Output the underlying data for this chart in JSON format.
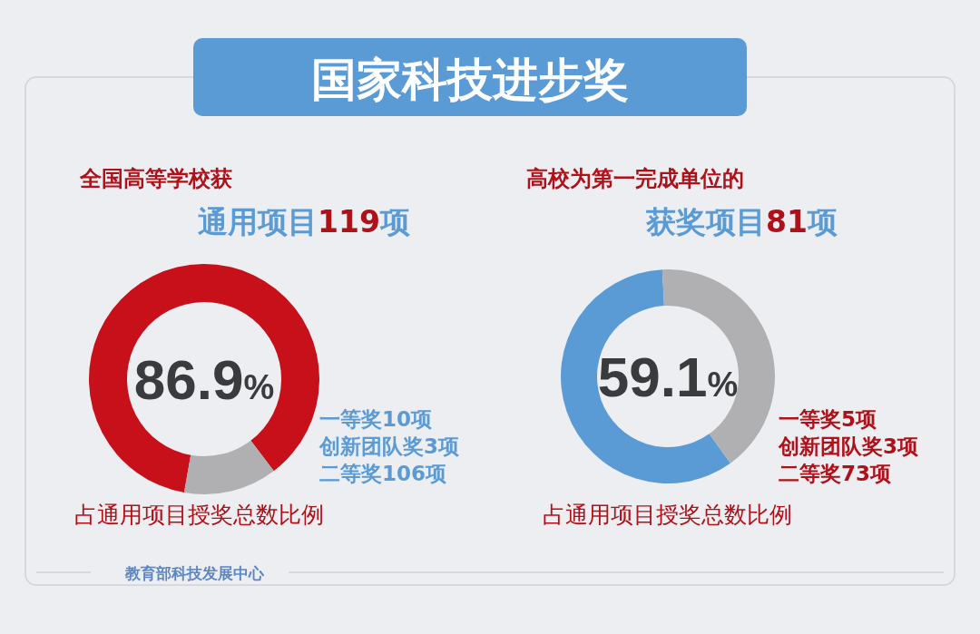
{
  "chart_data": [
    {
      "type": "donut",
      "title": "全国高等学校获",
      "subtitle": "通用项目119项",
      "categories": [
        null,
        null
      ],
      "values": [
        86.9,
        13.1
      ],
      "colors": [
        "#c8101a",
        "#b0b0b2"
      ],
      "value_labels": [
        "86.9%",
        null
      ],
      "annotations": [
        "国家科技进步奖",
        "一等奖10项",
        "创新团队奖3项",
        "二等奖106项",
        "占通用项目授奖总数比例",
        "教育部科技发展中心"
      ]
    },
    {
      "type": "donut",
      "title": "高校为第一完成单位的",
      "subtitle": "获奖项目81项",
      "categories": [
        null,
        null
      ],
      "values": [
        59.1,
        40.9
      ],
      "colors": [
        "#5b9bd5",
        "#b0b0b2"
      ],
      "value_labels": [
        "59.1%",
        null
      ],
      "annotations": [
        "一等奖5项",
        "创新团队奖3项",
        "二等奖73项",
        "占通用项目授奖总数比例"
      ]
    }
  ]
}
